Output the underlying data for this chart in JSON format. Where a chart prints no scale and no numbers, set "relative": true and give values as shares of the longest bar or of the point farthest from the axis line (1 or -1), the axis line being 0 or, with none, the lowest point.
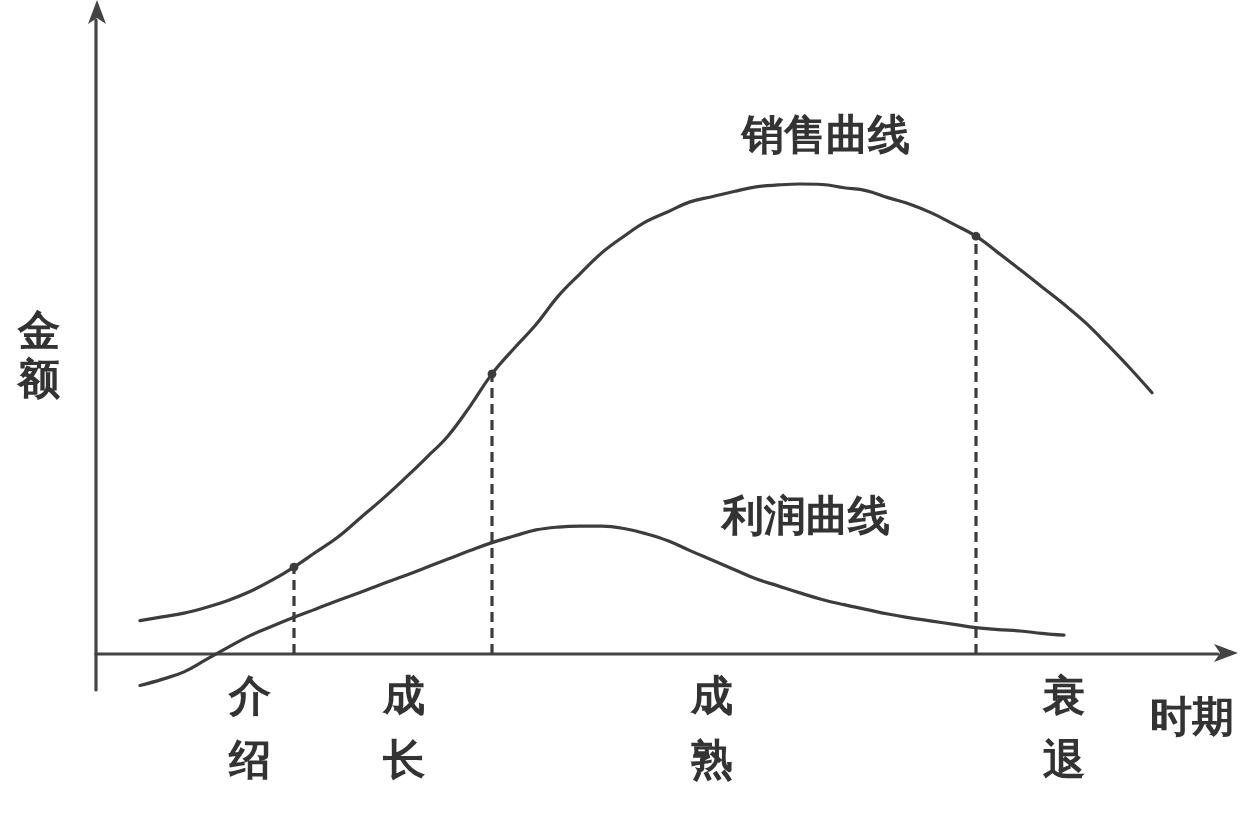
{
  "chart_data": {
    "type": "line",
    "relative": true,
    "xlabel": "时期",
    "ylabel": "金额",
    "categories": [
      null,
      null,
      null,
      null,
      null,
      null,
      null,
      "介绍",
      null,
      null,
      null,
      null,
      null,
      null,
      "成长",
      null,
      null,
      null,
      null,
      null,
      null,
      null,
      null,
      null,
      null,
      null,
      null,
      null,
      "成熟",
      null,
      null,
      null,
      null,
      null,
      null,
      null,
      null,
      null,
      null,
      null,
      null,
      null,
      null,
      null,
      "衰退",
      null,
      null,
      null,
      null,
      null,
      null,
      null
    ],
    "series": [
      {
        "name": "销售曲线",
        "color": "#3c3c3c",
        "values": [
          null,
          null,
          0.071,
          0.079,
          0.087,
          0.099,
          0.114,
          0.133,
          0.157,
          0.185,
          0.217,
          0.249,
          0.289,
          0.329,
          0.372,
          0.417,
          0.464,
          0.527,
          0.596,
          0.65,
          0.701,
          0.761,
          0.809,
          0.854,
          0.889,
          0.92,
          0.941,
          0.962,
          0.973,
          0.984,
          0.994,
          0.998,
          1.0,
          0.999,
          0.992,
          0.986,
          0.971,
          0.957,
          0.938,
          0.914,
          0.889,
          0.854,
          0.818,
          0.781,
          0.744,
          0.704,
          0.657,
          0.608,
          0.556,
          null,
          null,
          null
        ]
      },
      {
        "name": "利润曲线",
        "color": "#3c3c3c",
        "values": [
          null,
          null,
          -0.067,
          -0.054,
          -0.038,
          -0.012,
          0.014,
          0.039,
          0.059,
          0.078,
          0.096,
          0.114,
          0.131,
          0.149,
          0.166,
          0.184,
          0.202,
          0.22,
          0.237,
          0.251,
          0.264,
          0.27,
          0.272,
          0.272,
          0.267,
          0.256,
          0.241,
          0.22,
          0.2,
          0.18,
          0.16,
          0.145,
          0.13,
          0.116,
          0.105,
          0.095,
          0.085,
          0.077,
          0.07,
          0.063,
          0.056,
          0.052,
          0.049,
          0.044,
          0.04,
          null,
          null,
          null,
          null,
          null,
          null,
          null
        ]
      },
      {
        "type": "lollipop",
        "color": "#3c3c3c",
        "line_style": "dashed",
        "marker": "circle",
        "values": [
          null,
          null,
          null,
          null,
          null,
          null,
          null,
          null,
          null,
          0.185,
          null,
          null,
          null,
          null,
          null,
          null,
          null,
          null,
          0.596,
          null,
          null,
          null,
          null,
          null,
          null,
          null,
          null,
          null,
          null,
          null,
          null,
          null,
          null,
          null,
          null,
          null,
          null,
          null,
          null,
          null,
          0.889,
          null,
          null,
          null,
          null,
          null,
          null,
          null,
          null,
          null,
          null,
          null
        ]
      }
    ],
    "grid": false,
    "legend": false,
    "marker": "none",
    "line_style": "solid"
  }
}
